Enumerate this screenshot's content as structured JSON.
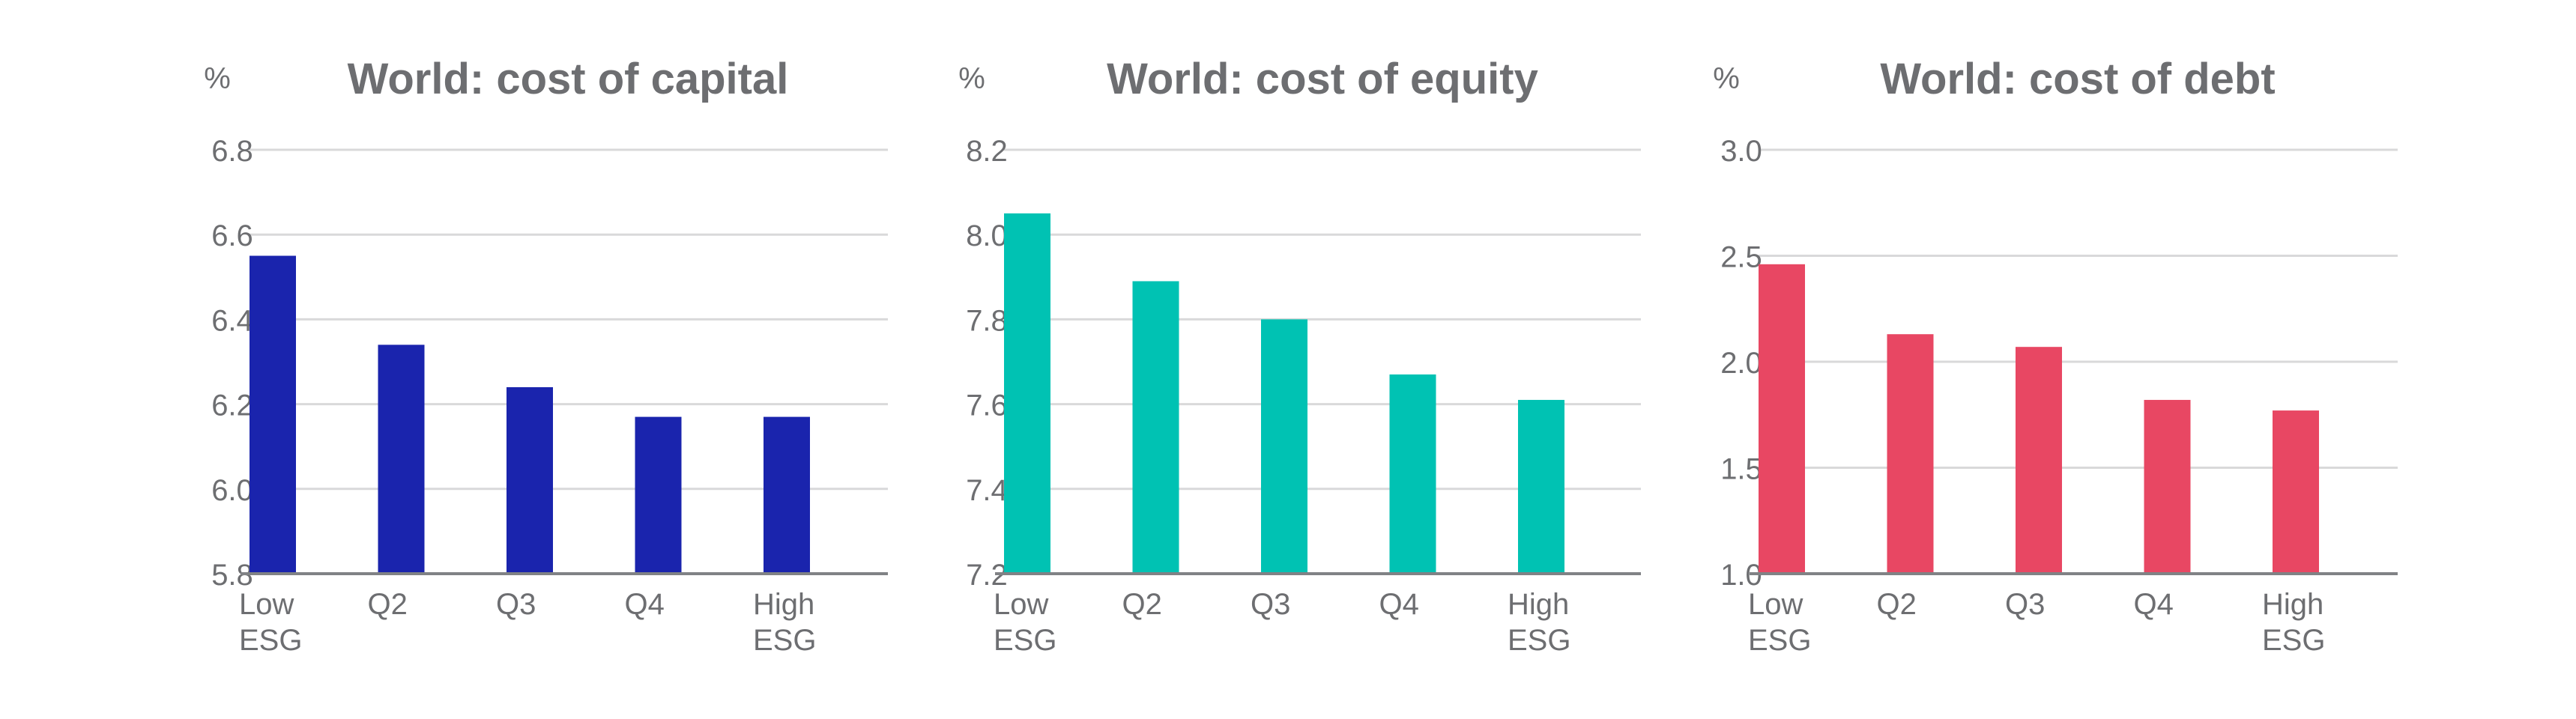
{
  "chart_data": [
    {
      "type": "bar",
      "title": "World: cost of capital",
      "ylabel": "%",
      "categories": [
        [
          "Low",
          "ESG"
        ],
        [
          "Q2"
        ],
        [
          "Q3"
        ],
        [
          "Q4"
        ],
        [
          "High",
          "ESG"
        ]
      ],
      "values": [
        6.55,
        6.34,
        6.24,
        6.17,
        6.17
      ],
      "ylim": [
        5.8,
        6.8
      ],
      "yticks": [
        "5.8",
        "6.0",
        "6.2",
        "6.4",
        "6.6",
        "6.8"
      ],
      "grid": true,
      "color": "#1a24ad"
    },
    {
      "type": "bar",
      "title": "World: cost of equity",
      "ylabel": "%",
      "categories": [
        [
          "Low",
          "ESG"
        ],
        [
          "Q2"
        ],
        [
          "Q3"
        ],
        [
          "Q4"
        ],
        [
          "High",
          "ESG"
        ]
      ],
      "values": [
        8.05,
        7.89,
        7.8,
        7.67,
        7.61
      ],
      "ylim": [
        7.2,
        8.2
      ],
      "yticks": [
        "7.2",
        "7.4",
        "7.6",
        "7.8",
        "8.0",
        "8.2"
      ],
      "grid": true,
      "color": "#00c2b3"
    },
    {
      "type": "bar",
      "title": "World: cost of debt",
      "ylabel": "%",
      "categories": [
        [
          "Low",
          "ESG"
        ],
        [
          "Q2"
        ],
        [
          "Q3"
        ],
        [
          "Q4"
        ],
        [
          "High",
          "ESG"
        ]
      ],
      "values": [
        2.46,
        2.13,
        2.07,
        1.82,
        1.77
      ],
      "ylim": [
        1.0,
        3.0
      ],
      "yticks": [
        "1.0",
        "1.5",
        "2.0",
        "2.5",
        "3.0"
      ],
      "grid": true,
      "color": "#e84763"
    }
  ]
}
